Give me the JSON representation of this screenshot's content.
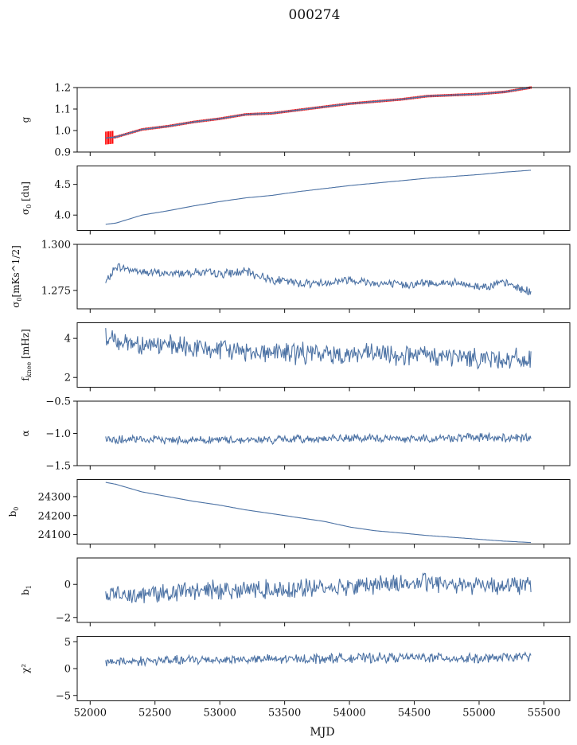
{
  "figure": {
    "title": "000274"
  },
  "chart_data": {
    "type": "line",
    "title": "000274",
    "xlabel": "MJD",
    "xlim": [
      51900,
      55700
    ],
    "xticks": [
      52000,
      52500,
      53000,
      53500,
      54000,
      54500,
      55000,
      55500
    ],
    "xtick_labels": [
      "52000",
      "52500",
      "53000",
      "53500",
      "54000",
      "54500",
      "55000",
      "55500"
    ],
    "colors": {
      "series": "#4c72a4",
      "errorbar": "#ff0000",
      "axes": "#111111"
    },
    "panels": [
      {
        "id": "g",
        "ylabel": "g",
        "ylim": [
          0.9,
          1.2
        ],
        "yticks": [
          0.9,
          1.0,
          1.1,
          1.2
        ],
        "ytick_labels": [
          "0.9",
          "1.0",
          "1.1",
          "1.2"
        ],
        "style": "trend_with_errorbars",
        "series": [
          {
            "x": [
              52120,
              52200,
              52400,
              52600,
              52800,
              53000,
              53200,
              53400,
              53600,
              53800,
              54000,
              54200,
              54400,
              54600,
              54800,
              55000,
              55200,
              55400
            ],
            "y": [
              0.965,
              0.97,
              1.005,
              1.02,
              1.04,
              1.055,
              1.075,
              1.08,
              1.095,
              1.11,
              1.125,
              1.135,
              1.145,
              1.16,
              1.165,
              1.17,
              1.18,
              1.2
            ]
          }
        ]
      },
      {
        "id": "sigma0_du",
        "ylabel": "σ0 [du]",
        "ylim": [
          3.75,
          4.8
        ],
        "yticks": [
          4.0,
          4.5
        ],
        "ytick_labels": [
          "4.0",
          "4.5"
        ],
        "style": "smooth",
        "series": [
          {
            "x": [
              52120,
              52200,
              52400,
              52600,
              52800,
              53000,
              53200,
              53400,
              53600,
              53800,
              54000,
              54200,
              54400,
              54600,
              54800,
              55000,
              55200,
              55400
            ],
            "y": [
              3.85,
              3.87,
              4.0,
              4.07,
              4.15,
              4.22,
              4.28,
              4.32,
              4.38,
              4.43,
              4.48,
              4.52,
              4.56,
              4.6,
              4.63,
              4.66,
              4.7,
              4.73
            ]
          }
        ]
      },
      {
        "id": "sigma0_mks",
        "ylabel": "σ0[mKs^1/2]",
        "ylim": [
          1.265,
          1.3
        ],
        "yticks": [
          1.275,
          1.3
        ],
        "ytick_labels": [
          "1.275",
          "1.300"
        ],
        "style": "noisy",
        "noise": 0.0018,
        "series": [
          {
            "x": [
              52120,
              52200,
              52400,
              52600,
              52800,
              53000,
              53200,
              53400,
              53600,
              53800,
              54000,
              54200,
              54400,
              54600,
              54800,
              55000,
              55200,
              55400
            ],
            "y": [
              1.279,
              1.288,
              1.285,
              1.284,
              1.285,
              1.284,
              1.285,
              1.281,
              1.279,
              1.279,
              1.281,
              1.279,
              1.278,
              1.279,
              1.279,
              1.277,
              1.279,
              1.274
            ]
          }
        ]
      },
      {
        "id": "fknee",
        "ylabel": "fknee [mHz]",
        "ylim": [
          1.5,
          4.8
        ],
        "yticks": [
          2,
          4
        ],
        "ytick_labels": [
          "2",
          "4"
        ],
        "style": "noisy",
        "noise": 0.42,
        "series": [
          {
            "x": [
              52120,
              52300,
              52600,
              53000,
              53400,
              53800,
              54200,
              54600,
              55000,
              55400
            ],
            "y": [
              4.0,
              3.8,
              3.6,
              3.4,
              3.3,
              3.2,
              3.2,
              3.1,
              3.0,
              2.9
            ]
          }
        ]
      },
      {
        "id": "alpha",
        "ylabel": "α",
        "ylim": [
          -1.5,
          -0.5
        ],
        "yticks": [
          -1.5,
          -1.0,
          -0.5
        ],
        "ytick_labels": [
          "−1.5",
          "−1.0",
          "−0.5"
        ],
        "style": "noisy",
        "noise": 0.05,
        "series": [
          {
            "x": [
              52120,
              52600,
              53000,
              53400,
              53800,
              54200,
              54600,
              55000,
              55400
            ],
            "y": [
              -1.1,
              -1.1,
              -1.1,
              -1.1,
              -1.08,
              -1.08,
              -1.08,
              -1.06,
              -1.08
            ]
          }
        ]
      },
      {
        "id": "b0",
        "ylabel": "b0",
        "ylim": [
          24050,
          24390
        ],
        "yticks": [
          24100,
          24200,
          24300
        ],
        "ytick_labels": [
          "24100",
          "24200",
          "24300"
        ],
        "style": "smooth",
        "series": [
          {
            "x": [
              52120,
              52200,
              52400,
              52600,
              52800,
              53000,
              53200,
              53400,
              53600,
              53800,
              54000,
              54200,
              54400,
              54600,
              54800,
              55000,
              55200,
              55400
            ],
            "y": [
              24375,
              24365,
              24325,
              24300,
              24275,
              24255,
              24230,
              24210,
              24190,
              24170,
              24140,
              24120,
              24108,
              24095,
              24085,
              24075,
              24065,
              24058
            ]
          }
        ]
      },
      {
        "id": "b1",
        "ylabel": "b1",
        "ylim": [
          -2.3,
          1.6
        ],
        "yticks": [
          -2,
          0
        ],
        "ytick_labels": [
          "−2",
          "0"
        ],
        "style": "noisy",
        "noise": 0.45,
        "series": [
          {
            "x": [
              52120,
              52600,
              53000,
              53400,
              53800,
              54200,
              54600,
              55000,
              55400
            ],
            "y": [
              -0.6,
              -0.5,
              -0.3,
              -0.3,
              -0.2,
              0.0,
              0.1,
              0.0,
              -0.1
            ]
          }
        ]
      },
      {
        "id": "chi2",
        "ylabel": "χ²",
        "ylim": [
          -6,
          6
        ],
        "yticks": [
          -5,
          0,
          5
        ],
        "ytick_labels": [
          "−5",
          "0",
          "5"
        ],
        "style": "noisy",
        "noise": 0.7,
        "series": [
          {
            "x": [
              52120,
              52600,
              53000,
              53400,
              53800,
              54200,
              54600,
              55000,
              55400
            ],
            "y": [
              1.3,
              1.5,
              1.7,
              1.7,
              1.9,
              2.0,
              2.1,
              1.8,
              2.3
            ]
          }
        ]
      }
    ]
  }
}
